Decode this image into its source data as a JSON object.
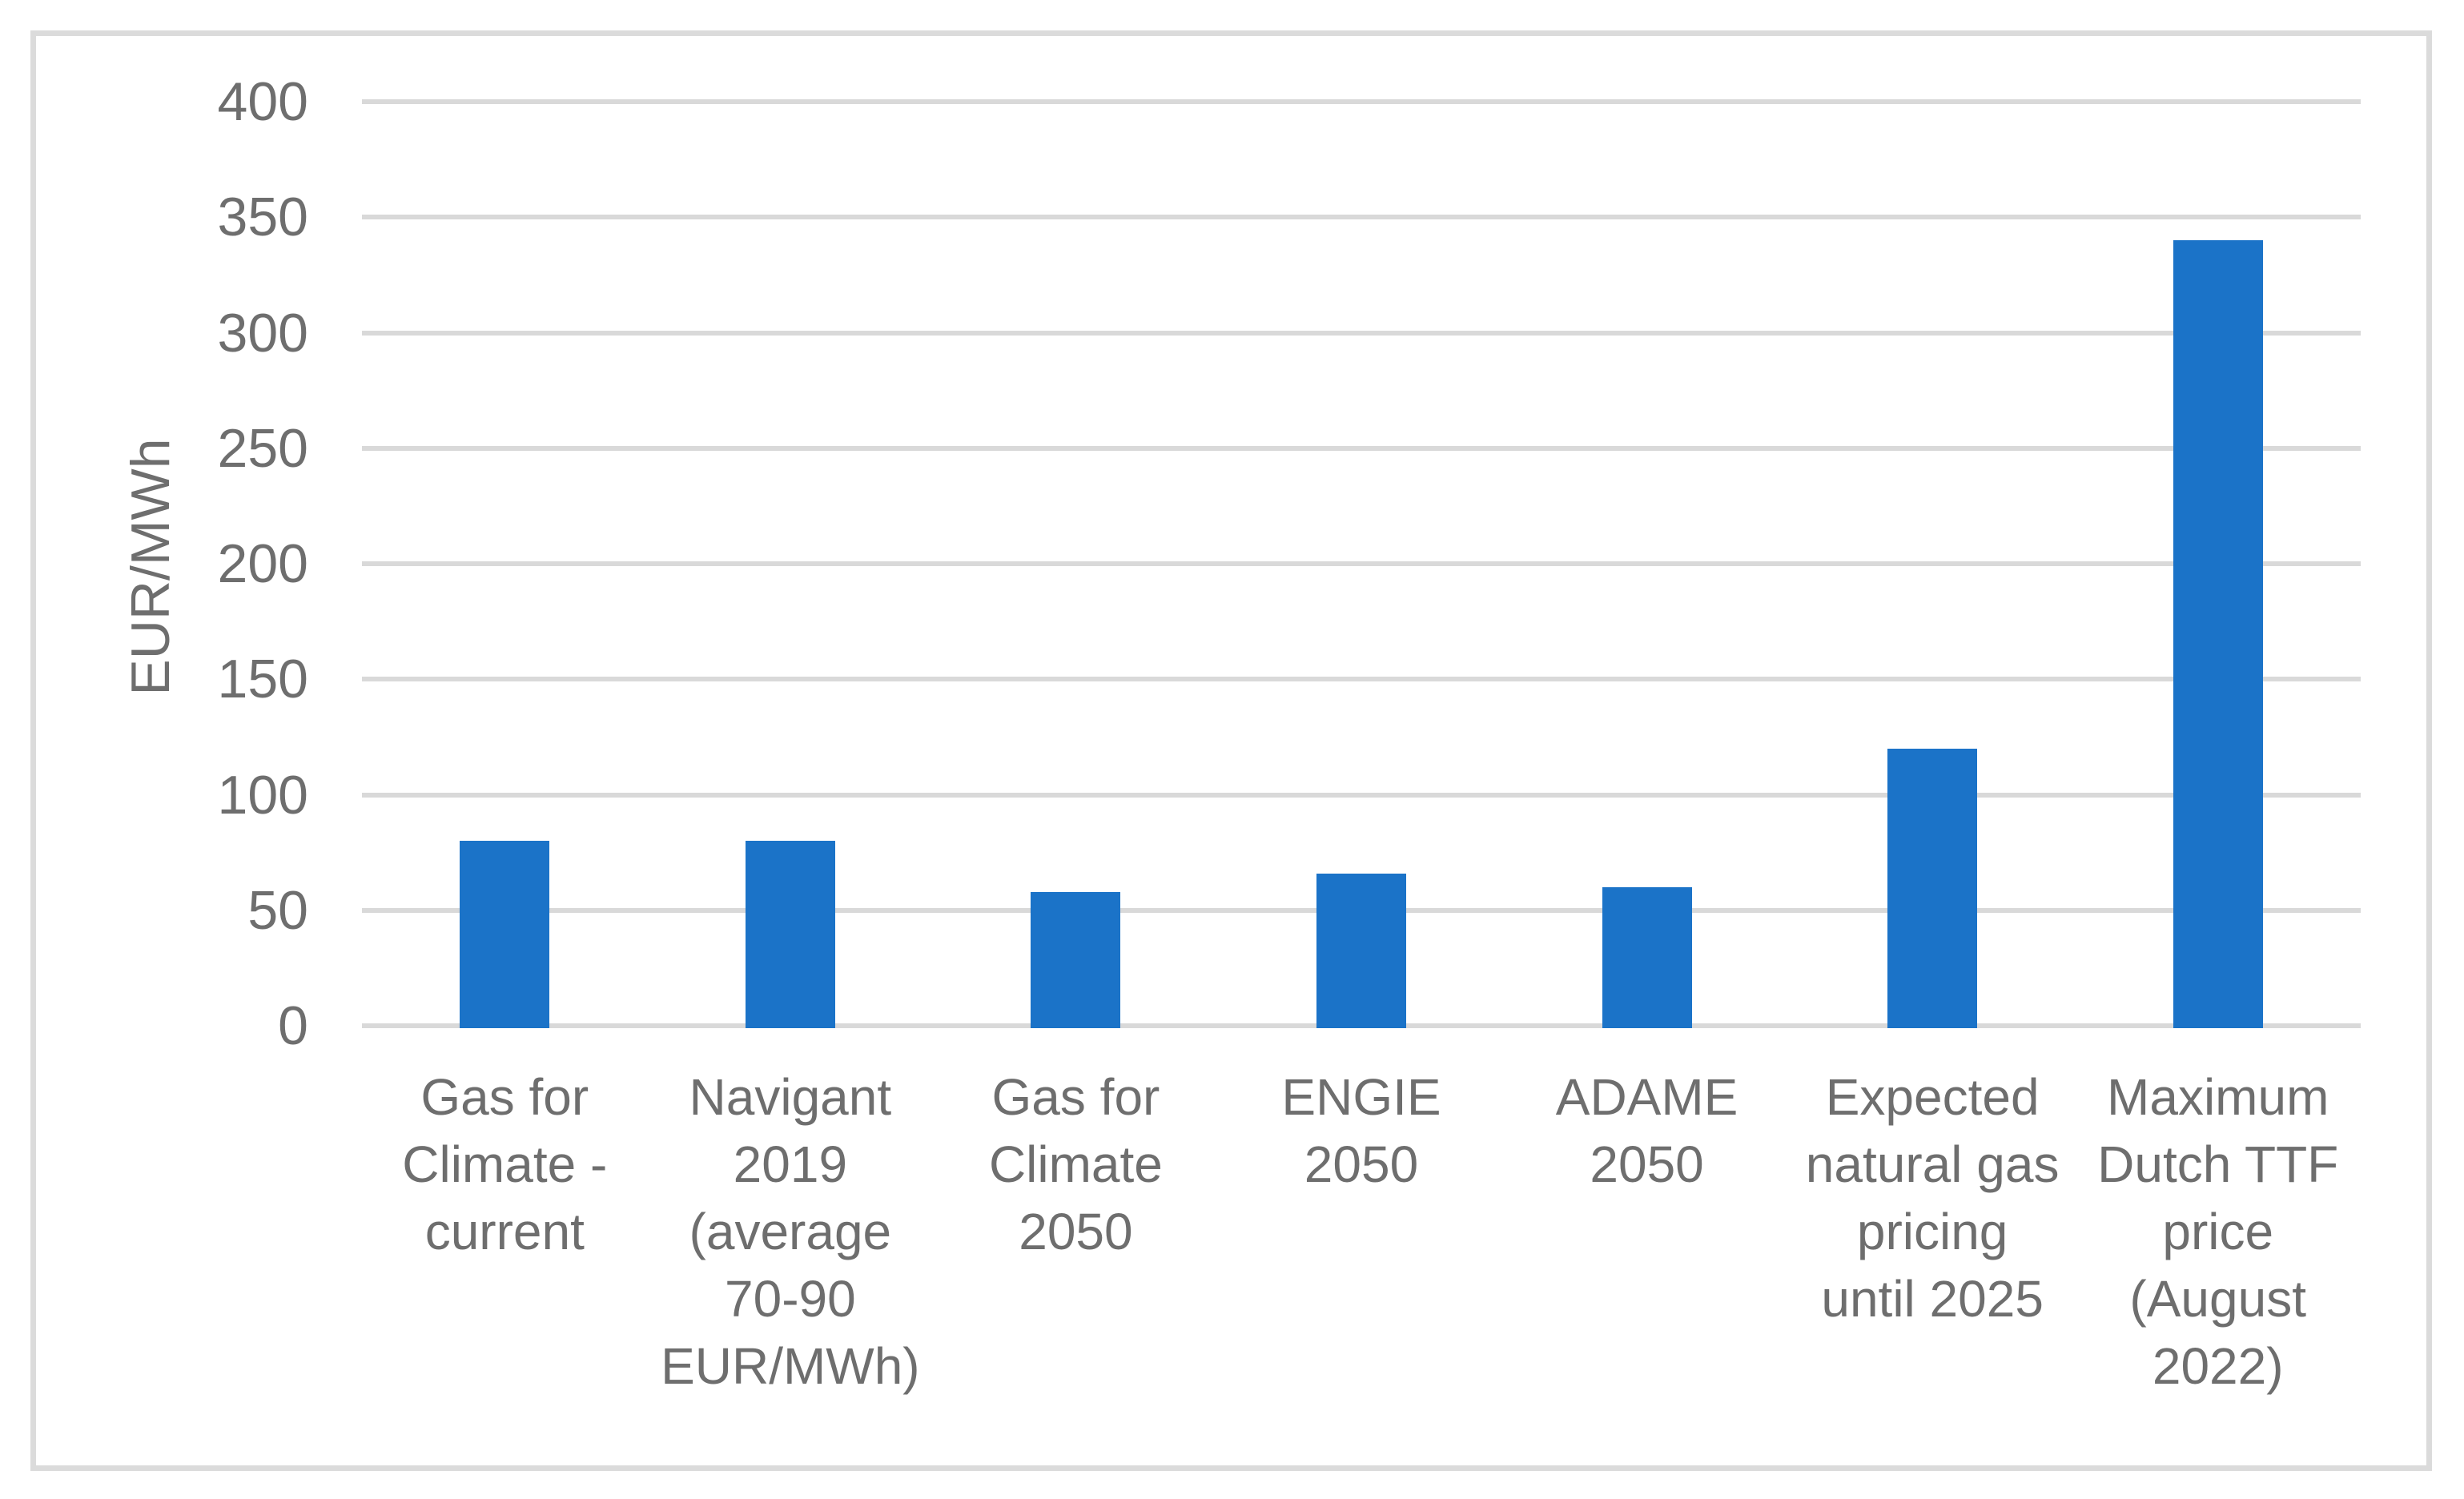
{
  "chart_data": {
    "type": "bar",
    "title": "",
    "xlabel": "",
    "ylabel": "EUR/MWh",
    "ylim": [
      0,
      400
    ],
    "yticks": [
      0,
      50,
      100,
      150,
      200,
      250,
      300,
      350,
      400
    ],
    "grid": true,
    "legend": false,
    "categories": [
      "Gas for Climate - current",
      "Navigant 2019 (average 70-90 EUR/MWh)",
      "Gas for Climate 2050",
      "ENGIE 2050",
      "ADAME 2050",
      "Expected natural gas pricing until 2025",
      "Maximum Dutch TTF price (August 2022)"
    ],
    "category_lines": [
      [
        "Gas for",
        "Climate -",
        "current"
      ],
      [
        "Navigant",
        "2019",
        "(average",
        "70-90",
        "EUR/MWh)"
      ],
      [
        "Gas for",
        "Climate",
        "2050"
      ],
      [
        "ENGIE",
        "2050"
      ],
      [
        "ADAME",
        "2050"
      ],
      [
        "Expected",
        "natural gas",
        "pricing",
        "until 2025"
      ],
      [
        "Maximum",
        "Dutch TTF",
        "price",
        "(August",
        "2022)"
      ]
    ],
    "values": [
      80,
      80,
      58,
      66,
      60,
      120,
      340
    ]
  },
  "colors": {
    "bar": "#1B73C8",
    "gridline": "#D9D9D9",
    "frame": "#DBDBDB",
    "text": "#6E6E6E",
    "background": "#FFFFFF"
  }
}
